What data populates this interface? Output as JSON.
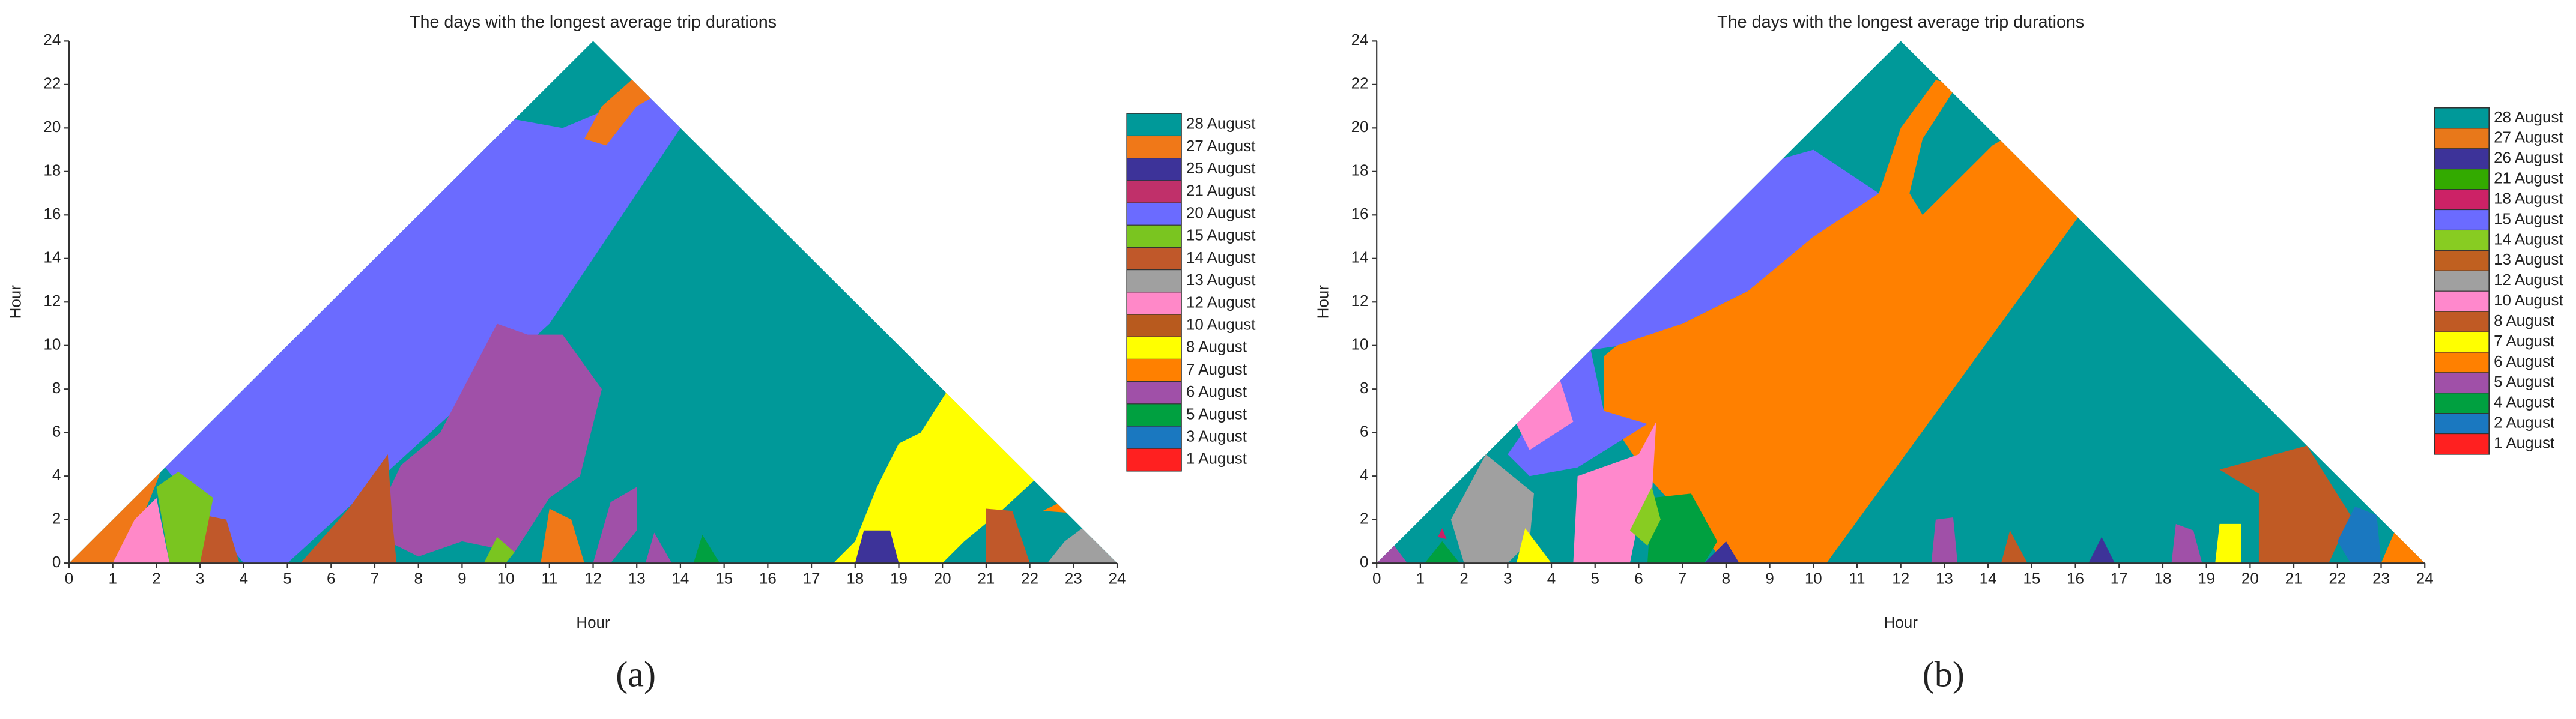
{
  "chart_data": [
    {
      "type": "triangle-map",
      "title": "The days with the longest average trip durations",
      "x_label": "Hour",
      "y_label": "Hour",
      "caption": "(a)",
      "xlim": [
        0,
        24
      ],
      "ylim": [
        0,
        24
      ],
      "xticks": [
        0,
        1,
        2,
        3,
        4,
        5,
        6,
        7,
        8,
        9,
        10,
        11,
        12,
        13,
        14,
        15,
        16,
        17,
        18,
        19,
        20,
        21,
        22,
        23,
        24
      ],
      "yticks": [
        0,
        2,
        4,
        6,
        8,
        10,
        12,
        14,
        16,
        18,
        20,
        22,
        24
      ],
      "series": [
        {
          "name": "28 August",
          "color": "#009999"
        },
        {
          "name": "27 August",
          "color": "#f07818"
        },
        {
          "name": "25 August",
          "color": "#3d3399"
        },
        {
          "name": "21 August",
          "color": "#c0306a"
        },
        {
          "name": "20 August",
          "color": "#6b6bff"
        },
        {
          "name": "15 August",
          "color": "#7ac520"
        },
        {
          "name": "14 August",
          "color": "#c0582a"
        },
        {
          "name": "13 August",
          "color": "#a0a0a0"
        },
        {
          "name": "12 August",
          "color": "#ff88c8"
        },
        {
          "name": "10 August",
          "color": "#b85a1e"
        },
        {
          "name": "8 August",
          "color": "#ffff00"
        },
        {
          "name": "7 August",
          "color": "#ff8000"
        },
        {
          "name": "6 August",
          "color": "#a050a8"
        },
        {
          "name": "5 August",
          "color": "#00a040"
        },
        {
          "name": "3 August",
          "color": "#1a78c0"
        },
        {
          "name": "1 August",
          "color": "#ff2020"
        }
      ]
    },
    {
      "type": "triangle-map",
      "title": "The days with the longest average trip durations",
      "x_label": "Hour",
      "y_label": "Hour",
      "caption": "(b)",
      "xlim": [
        0,
        24
      ],
      "ylim": [
        0,
        24
      ],
      "xticks": [
        0,
        1,
        2,
        3,
        4,
        5,
        6,
        7,
        8,
        9,
        10,
        11,
        12,
        13,
        14,
        15,
        16,
        17,
        18,
        19,
        20,
        21,
        22,
        23,
        24
      ],
      "yticks": [
        0,
        2,
        4,
        6,
        8,
        10,
        12,
        14,
        16,
        18,
        20,
        22,
        24
      ],
      "series": [
        {
          "name": "28 August",
          "color": "#009999"
        },
        {
          "name": "27 August",
          "color": "#e8781a"
        },
        {
          "name": "26 August",
          "color": "#3d3399"
        },
        {
          "name": "21 August",
          "color": "#33aa00"
        },
        {
          "name": "18 August",
          "color": "#cc2266"
        },
        {
          "name": "15 August",
          "color": "#6b6bff"
        },
        {
          "name": "14 August",
          "color": "#88cc22"
        },
        {
          "name": "13 August",
          "color": "#c06020"
        },
        {
          "name": "12 August",
          "color": "#a0a0a0"
        },
        {
          "name": "10 August",
          "color": "#ff88cc"
        },
        {
          "name": "8 August",
          "color": "#c05a24"
        },
        {
          "name": "7 August",
          "color": "#ffff00"
        },
        {
          "name": "6 August",
          "color": "#ff8000"
        },
        {
          "name": "5 August",
          "color": "#a050a8"
        },
        {
          "name": "4 August",
          "color": "#00a040"
        },
        {
          "name": "2 August",
          "color": "#1a78c0"
        },
        {
          "name": "1 August",
          "color": "#ff2020"
        }
      ]
    }
  ]
}
